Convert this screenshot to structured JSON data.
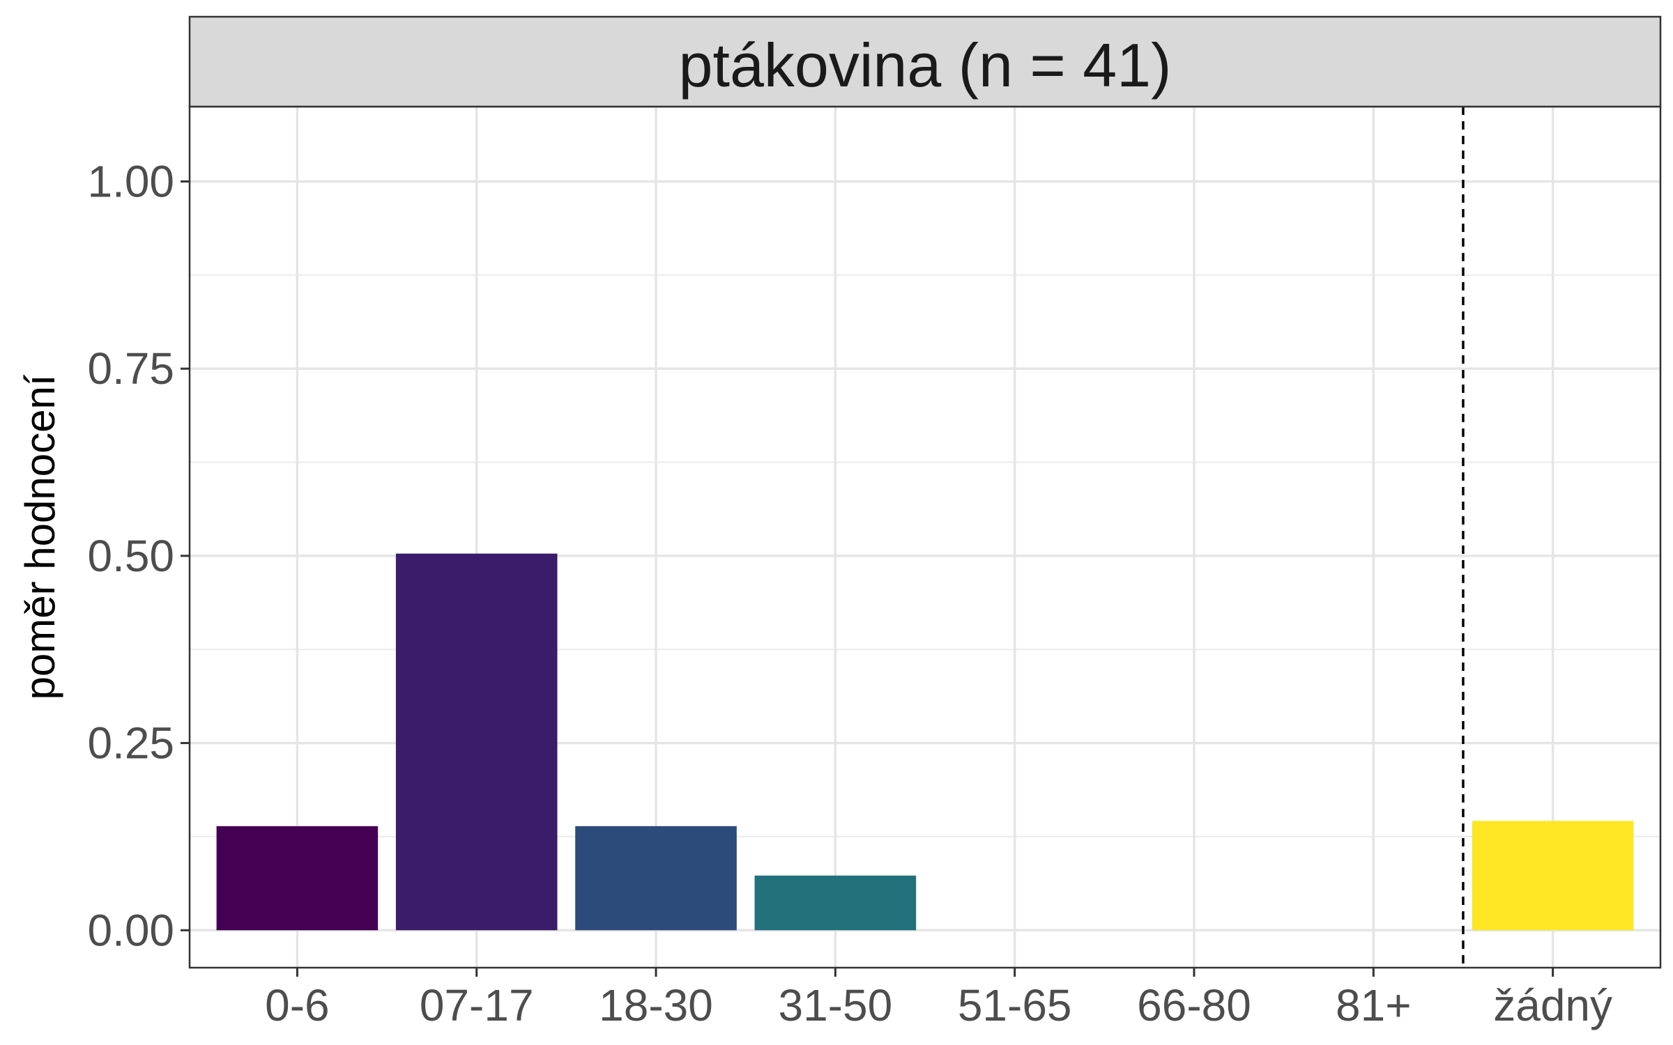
{
  "chart_data": {
    "type": "bar",
    "panel_title": "ptákovina (n = 41)",
    "xlabel": "",
    "ylabel": "poměr hodnocení",
    "categories": [
      "0-6",
      "07-17",
      "18-30",
      "31-50",
      "51-65",
      "66-80",
      "81+",
      "žádný"
    ],
    "values": [
      0.139,
      0.503,
      0.139,
      0.073,
      0.0,
      0.0,
      0.0,
      0.146
    ],
    "colors": [
      "#440154",
      "#3b1c6a",
      "#2c4a7a",
      "#21707a",
      "#1fa187",
      "#4ac16d",
      "#a0da39",
      "#fde725"
    ],
    "ylim": [
      -0.05,
      1.1
    ],
    "yticks": [
      0.0,
      0.25,
      0.5,
      0.75,
      1.0
    ],
    "ytick_labels": [
      "0.00",
      "0.25",
      "0.50",
      "0.75",
      "1.00"
    ],
    "reference_line": {
      "between": [
        "81+",
        "žádný"
      ],
      "style": "dashed"
    },
    "grid": true,
    "legend": "none"
  }
}
